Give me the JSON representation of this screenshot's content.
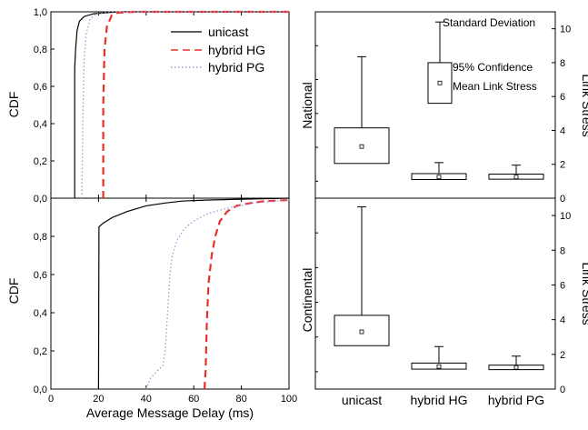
{
  "chart_data": [
    {
      "type": "line",
      "panel": "cdf-national",
      "ylabel": "CDF",
      "xlim": [
        0,
        100
      ],
      "ylim": [
        0,
        1
      ],
      "yticks": [
        "0,0",
        "0,2",
        "0,4",
        "0,6",
        "0,8",
        "1,0"
      ],
      "series": [
        {
          "name": "unicast",
          "color": "#000000",
          "style": "solid",
          "points": [
            [
              10,
              0
            ],
            [
              10,
              0.7
            ],
            [
              10.4,
              0.8
            ],
            [
              11,
              0.9
            ],
            [
              12,
              0.95
            ],
            [
              14,
              0.975
            ],
            [
              18,
              0.99
            ],
            [
              25,
              0.997
            ],
            [
              30,
              1.0
            ],
            [
              100,
              1.0
            ]
          ]
        },
        {
          "name": "hybrid HG",
          "color": "#e8302a",
          "style": "dashed",
          "points": [
            [
              22,
              0
            ],
            [
              22,
              0.5
            ],
            [
              22.5,
              0.8
            ],
            [
              23.5,
              0.92
            ],
            [
              25.5,
              0.98
            ],
            [
              28,
              0.995
            ],
            [
              35,
              1.0
            ],
            [
              100,
              1.0
            ]
          ]
        },
        {
          "name": "hybrid PG",
          "color": "#9a9ad8",
          "style": "dotted",
          "points": [
            [
              13,
              0
            ],
            [
              13.5,
              0.5
            ],
            [
              14,
              0.75
            ],
            [
              14.8,
              0.88
            ],
            [
              16.5,
              0.96
            ],
            [
              19,
              0.99
            ],
            [
              24,
              1.0
            ],
            [
              100,
              1.0
            ]
          ]
        }
      ]
    },
    {
      "type": "line",
      "panel": "cdf-continental",
      "ylabel": "CDF",
      "xlabel": "Average Message Delay (ms)",
      "xlim": [
        0,
        100
      ],
      "ylim": [
        0,
        1
      ],
      "xticks": [
        "0",
        "20",
        "40",
        "60",
        "80",
        "100"
      ],
      "yticks": [
        "0,0",
        "0,2",
        "0,4",
        "0,6",
        "0,8"
      ],
      "series": [
        {
          "name": "unicast",
          "color": "#000000",
          "style": "solid",
          "points": [
            [
              20,
              0
            ],
            [
              20.2,
              0.85
            ],
            [
              22,
              0.87
            ],
            [
              26,
              0.9
            ],
            [
              32,
              0.93
            ],
            [
              40,
              0.96
            ],
            [
              48,
              0.975
            ],
            [
              55,
              0.985
            ],
            [
              65,
              0.99
            ],
            [
              80,
              0.995
            ],
            [
              100,
              1.0
            ]
          ]
        },
        {
          "name": "hybrid HG",
          "color": "#e8302a",
          "style": "dashed",
          "points": [
            [
              64.5,
              0
            ],
            [
              65,
              0.1
            ],
            [
              65.5,
              0.35
            ],
            [
              66.2,
              0.55
            ],
            [
              67.5,
              0.7
            ],
            [
              69,
              0.8
            ],
            [
              71,
              0.88
            ],
            [
              74,
              0.93
            ],
            [
              78,
              0.96
            ],
            [
              84,
              0.975
            ],
            [
              90,
              0.985
            ],
            [
              100,
              0.99
            ]
          ]
        },
        {
          "name": "hybrid PG",
          "color": "#9a9ad8",
          "style": "dotted",
          "points": [
            [
              40,
              0
            ],
            [
              42,
              0.06
            ],
            [
              45,
              0.1
            ],
            [
              47,
              0.12
            ],
            [
              48,
              0.2
            ],
            [
              49,
              0.4
            ],
            [
              50,
              0.6
            ],
            [
              51,
              0.7
            ],
            [
              53,
              0.78
            ],
            [
              56,
              0.84
            ],
            [
              60,
              0.88
            ],
            [
              66,
              0.92
            ],
            [
              75,
              0.95
            ],
            [
              85,
              0.975
            ],
            [
              100,
              0.99
            ]
          ]
        }
      ]
    },
    {
      "type": "box",
      "panel": "stress-national",
      "rowlabel": "National",
      "ylabel": "Link Stress",
      "ylim": [
        0,
        11
      ],
      "yticks": [
        "0",
        "2",
        "4",
        "6",
        "8",
        "10"
      ],
      "categories": [
        "unicast",
        "hybrid HG",
        "hybrid PG"
      ],
      "boxes": [
        {
          "mean": 3.05,
          "ci_low": 2.05,
          "ci_high": 4.15,
          "sd_low": 2.05,
          "sd_high": 8.35
        },
        {
          "mean": 1.25,
          "ci_low": 1.1,
          "ci_high": 1.45,
          "sd_low": 1.1,
          "sd_high": 2.1
        },
        {
          "mean": 1.25,
          "ci_low": 1.12,
          "ci_high": 1.42,
          "sd_low": 1.12,
          "sd_high": 1.95
        }
      ]
    },
    {
      "type": "box",
      "panel": "stress-continental",
      "rowlabel": "Continental",
      "ylabel": "Link Stress",
      "ylim": [
        0,
        11
      ],
      "yticks": [
        "0",
        "2",
        "4",
        "6",
        "8",
        "10"
      ],
      "categories": [
        "unicast",
        "hybrid HG",
        "hybrid PG"
      ],
      "boxes": [
        {
          "mean": 3.3,
          "ci_low": 2.5,
          "ci_high": 4.25,
          "sd_low": 2.5,
          "sd_high": 10.5
        },
        {
          "mean": 1.3,
          "ci_low": 1.15,
          "ci_high": 1.5,
          "sd_low": 1.15,
          "sd_high": 2.45
        },
        {
          "mean": 1.25,
          "ci_low": 1.12,
          "ci_high": 1.38,
          "sd_low": 1.12,
          "sd_high": 1.9
        }
      ]
    }
  ],
  "legend": {
    "cdf": [
      "unicast",
      "hybrid HG",
      "hybrid PG"
    ],
    "stress": {
      "sd_label": "Standard Deviation",
      "ci_label": "95% Confidence",
      "mean_label": "Mean Link Stress",
      "example": {
        "ci_low": 5.6,
        "ci_high": 8.0,
        "mean": 6.8,
        "sd_high": 10.4
      }
    }
  }
}
